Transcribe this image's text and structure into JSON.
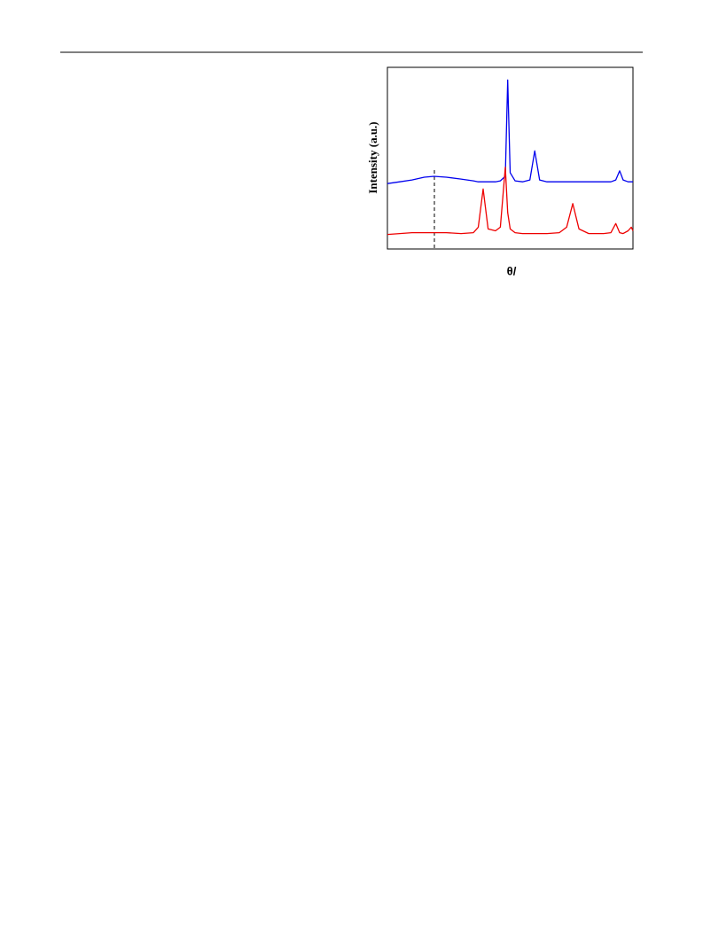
{
  "chart_data": {
    "type": "line",
    "x_label": "θ/",
    "y_label": "Intensity (a.u.)",
    "xlim": [
      0,
      100
    ],
    "ylim": [
      0,
      100
    ],
    "x": [
      0,
      5,
      10,
      15,
      19,
      24,
      30,
      35,
      37,
      39,
      41,
      44,
      46,
      48,
      49,
      50,
      52,
      55,
      58,
      60,
      62,
      65,
      70,
      73,
      75.5,
      78,
      82,
      88,
      91,
      93,
      94.6,
      96,
      98,
      99.3,
      100
    ],
    "series": [
      {
        "color": "#0000ee",
        "values": [
          36,
          37,
          38,
          39.5,
          40,
          39.5,
          38.5,
          37.5,
          37,
          37,
          37,
          37,
          37.5,
          40,
          93,
          42,
          37.5,
          37,
          38,
          54,
          38,
          37,
          37,
          37,
          37,
          37,
          37,
          37,
          37,
          38,
          43,
          38,
          37,
          37,
          37
        ]
      },
      {
        "color": "#ee0000",
        "values": [
          8,
          8.5,
          9,
          9,
          9,
          9,
          8.5,
          9,
          12,
          33,
          11,
          10,
          12,
          45,
          20,
          11,
          9,
          8.5,
          8.5,
          8.5,
          8.5,
          8.5,
          9,
          12,
          25,
          11,
          8.5,
          8.5,
          9,
          14,
          9,
          8.5,
          10,
          12,
          10
        ]
      }
    ]
  }
}
